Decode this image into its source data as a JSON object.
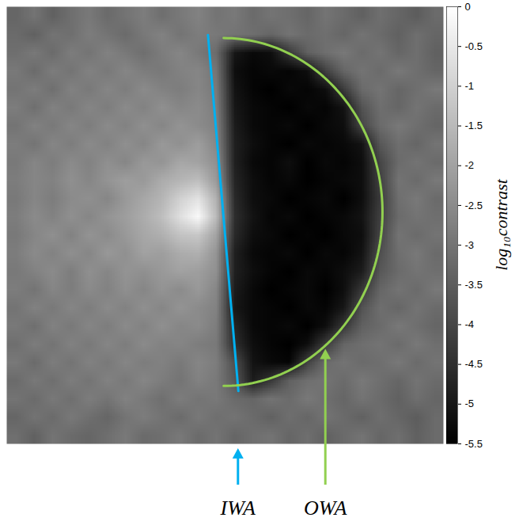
{
  "chart_data": {
    "type": "heatmap",
    "tick_labels": false,
    "cells": [
      [
        -3.3,
        -3.0,
        -3.4,
        -3.1,
        -2.9,
        -3.2,
        -3.0,
        -2.8,
        -3.1,
        -2.9,
        -2.7,
        -3.0,
        -2.9,
        -3.2,
        -3.0,
        -3.1,
        -3.3,
        -3.0,
        -3.2,
        -3.4,
        -3.1,
        -3.3,
        -3.5,
        -3.2
      ],
      [
        -3.2,
        -3.4,
        -3.0,
        -3.1,
        -2.8,
        -3.0,
        -3.2,
        -2.9,
        -2.7,
        -3.0,
        -2.8,
        -2.9,
        -3.0,
        -3.1,
        -3.3,
        -3.0,
        -3.2,
        -3.1,
        -3.3,
        -3.0,
        -3.2,
        -3.4,
        -3.1,
        -3.3
      ],
      [
        -3.1,
        -2.9,
        -3.2,
        -2.8,
        -3.0,
        -2.7,
        -2.9,
        -3.1,
        -2.8,
        -2.6,
        -2.9,
        -3.2,
        -5.0,
        -5.3,
        -5.2,
        -4.3,
        -3.4,
        -3.1,
        -2.9,
        -3.2,
        -3.0,
        -3.3,
        -3.1,
        -3.4
      ],
      [
        -2.9,
        -3.2,
        -2.8,
        -3.0,
        -2.7,
        -2.9,
        -2.6,
        -2.8,
        -2.9,
        -2.7,
        -2.6,
        -3.0,
        -5.2,
        -5.4,
        -5.3,
        -5.4,
        -5.2,
        -4.1,
        -3.3,
        -3.0,
        -3.2,
        -2.9,
        -3.1,
        -3.3
      ],
      [
        -3.0,
        -2.8,
        -3.1,
        -2.7,
        -2.9,
        -2.6,
        -2.8,
        -2.5,
        -2.7,
        -2.8,
        -2.6,
        -2.9,
        -5.1,
        -5.4,
        -5.5,
        -5.3,
        -5.4,
        -5.2,
        -4.2,
        -3.2,
        -3.0,
        -3.3,
        -3.1,
        -2.9
      ],
      [
        -2.8,
        -3.1,
        -2.7,
        -2.9,
        -2.6,
        -2.8,
        -2.5,
        -2.7,
        -2.4,
        -2.6,
        -2.5,
        -2.8,
        -5.0,
        -5.3,
        -5.4,
        -5.5,
        -5.3,
        -5.4,
        -5.1,
        -3.7,
        -3.1,
        -3.3,
        -3.0,
        -3.2
      ],
      [
        -3.0,
        -2.7,
        -2.9,
        -2.6,
        -2.8,
        -2.5,
        -2.7,
        -2.4,
        -2.6,
        -2.3,
        -2.5,
        -2.7,
        -4.9,
        -5.3,
        -5.4,
        -5.3,
        -5.5,
        -5.3,
        -5.2,
        -4.0,
        -3.2,
        -2.9,
        -3.1,
        -3.3
      ],
      [
        -2.8,
        -3.0,
        -2.6,
        -2.8,
        -2.5,
        -2.7,
        -2.4,
        -2.6,
        -2.2,
        -2.4,
        -2.1,
        -2.6,
        -4.8,
        -5.2,
        -5.4,
        -5.5,
        -5.3,
        -5.4,
        -5.3,
        -5.1,
        -3.6,
        -3.1,
        -3.3,
        -3.0
      ],
      [
        -2.9,
        -2.6,
        -2.8,
        -2.5,
        -2.7,
        -2.4,
        -2.6,
        -2.2,
        -2.3,
        -1.9,
        -2.0,
        -2.4,
        -4.8,
        -5.3,
        -5.4,
        -5.2,
        -5.5,
        -5.3,
        -5.4,
        -5.2,
        -4.0,
        -3.2,
        -3.0,
        -3.2
      ],
      [
        -2.8,
        -2.6,
        -2.7,
        -2.4,
        -2.6,
        -2.3,
        -2.1,
        -2.2,
        -1.8,
        -1.6,
        -1.4,
        -2.2,
        -4.7,
        -5.2,
        -5.4,
        -5.3,
        -5.5,
        -5.4,
        -5.3,
        -5.2,
        -4.1,
        -3.0,
        -3.2,
        -2.9
      ],
      [
        -2.9,
        -2.6,
        -2.8,
        -2.5,
        -2.4,
        -2.6,
        -2.2,
        -1.9,
        -1.6,
        -1.0,
        -0.6,
        -1.7,
        -4.6,
        -5.2,
        -5.3,
        -5.5,
        -5.4,
        -5.3,
        -5.5,
        -5.2,
        -4.2,
        -3.1,
        -2.9,
        -3.2
      ],
      [
        -2.8,
        -2.5,
        -2.7,
        -2.4,
        -2.6,
        -2.3,
        -2.1,
        -1.8,
        -1.4,
        -0.7,
        -0.1,
        -1.5,
        -4.5,
        -5.1,
        -5.4,
        -5.3,
        -5.5,
        -5.4,
        -5.3,
        -5.1,
        -4.1,
        -3.2,
        -3.0,
        -3.1
      ],
      [
        -2.9,
        -2.6,
        -2.4,
        -2.7,
        -2.3,
        -2.5,
        -2.2,
        -1.9,
        -1.7,
        -1.3,
        -1.2,
        -2.0,
        -4.6,
        -5.2,
        -5.3,
        -5.5,
        -5.4,
        -5.5,
        -5.3,
        -5.2,
        -4.0,
        -3.0,
        -3.2,
        -3.0
      ],
      [
        -2.8,
        -2.5,
        -2.7,
        -2.4,
        -2.6,
        -2.2,
        -2.4,
        -2.0,
        -2.1,
        -1.8,
        -1.7,
        -2.3,
        -4.8,
        -5.3,
        -5.4,
        -5.3,
        -5.5,
        -5.3,
        -5.4,
        -5.1,
        -3.8,
        -3.1,
        -2.9,
        -3.2
      ],
      [
        -2.9,
        -2.7,
        -2.5,
        -2.8,
        -2.4,
        -2.6,
        -2.3,
        -2.4,
        -2.2,
        -2.0,
        -2.1,
        -2.4,
        -4.8,
        -5.2,
        -5.4,
        -5.5,
        -5.3,
        -5.4,
        -5.2,
        -4.9,
        -3.6,
        -3.2,
        -3.0,
        -3.1
      ],
      [
        -2.8,
        -3.0,
        -2.6,
        -2.8,
        -2.5,
        -2.7,
        -2.4,
        -2.6,
        -2.3,
        -2.5,
        -2.2,
        -2.6,
        -4.9,
        -5.3,
        -5.5,
        -5.4,
        -5.3,
        -5.5,
        -5.2,
        -4.3,
        -3.3,
        -3.0,
        -3.2,
        -2.9
      ],
      [
        -3.0,
        -2.7,
        -2.9,
        -2.6,
        -2.8,
        -2.5,
        -2.7,
        -2.4,
        -2.6,
        -2.3,
        -2.5,
        -2.7,
        -5.0,
        -5.3,
        -5.4,
        -5.5,
        -5.3,
        -5.4,
        -5.0,
        -3.7,
        -3.1,
        -3.3,
        -3.0,
        -3.2
      ],
      [
        -2.9,
        -3.1,
        -2.7,
        -2.9,
        -2.6,
        -2.8,
        -2.5,
        -2.7,
        -2.4,
        -2.6,
        -2.5,
        -2.8,
        -4.7,
        -5.3,
        -5.4,
        -5.3,
        -5.5,
        -5.2,
        -4.3,
        -3.4,
        -3.2,
        -2.9,
        -3.1,
        -3.3
      ],
      [
        -3.1,
        -2.8,
        -3.0,
        -2.7,
        -2.9,
        -2.6,
        -2.8,
        -2.5,
        -2.7,
        -2.6,
        -2.8,
        -2.9,
        -4.5,
        -5.2,
        -5.4,
        -5.5,
        -5.2,
        -4.2,
        -3.3,
        -3.1,
        -3.0,
        -3.2,
        -2.9,
        -3.1
      ],
      [
        -2.9,
        -3.2,
        -2.8,
        -3.0,
        -2.7,
        -2.9,
        -2.6,
        -2.8,
        -2.7,
        -2.9,
        -2.6,
        -2.8,
        -3.8,
        -5.1,
        -5.3,
        -5.4,
        -4.1,
        -3.2,
        -3.0,
        -3.2,
        -3.1,
        -2.9,
        -3.2,
        -3.0
      ],
      [
        -3.2,
        -2.9,
        -3.1,
        -2.8,
        -3.0,
        -2.7,
        -2.9,
        -2.6,
        -2.8,
        -3.0,
        -2.7,
        -2.9,
        -3.6,
        -4.9,
        -4.3,
        -3.4,
        -3.1,
        -3.0,
        -3.2,
        -2.9,
        -3.1,
        -3.3,
        -3.0,
        -3.2
      ],
      [
        -3.0,
        -3.2,
        -2.9,
        -3.1,
        -2.8,
        -3.0,
        -2.7,
        -2.9,
        -3.1,
        -2.8,
        -3.0,
        -2.9,
        -3.2,
        -3.3,
        -3.0,
        -3.2,
        -2.9,
        -3.1,
        -3.3,
        -3.0,
        -3.2,
        -3.4,
        -3.1,
        -3.3
      ],
      [
        -3.3,
        -3.0,
        -3.2,
        -2.9,
        -3.1,
        -3.3,
        -3.0,
        -2.8,
        -3.0,
        -3.2,
        -2.9,
        -3.1,
        -3.0,
        -3.2,
        -3.4,
        -3.1,
        -3.3,
        -3.0,
        -3.2,
        -3.4,
        -3.1,
        -3.3,
        -3.5,
        -3.2
      ],
      [
        -3.1,
        -3.4,
        -3.0,
        -3.2,
        -3.3,
        -3.1,
        -2.9,
        -3.2,
        -3.1,
        -2.9,
        -3.2,
        -3.0,
        -3.3,
        -3.1,
        -3.0,
        -3.3,
        -3.1,
        -3.4,
        -3.2,
        -3.0,
        -3.3,
        -3.1,
        -3.4,
        -3.2
      ]
    ],
    "colorbar": {
      "label": "log₁₀contrast",
      "range": [
        -5.5,
        0
      ],
      "ticks": [
        0,
        -0.5,
        -1,
        -1.5,
        -2,
        -2.5,
        -3,
        -3.5,
        -4,
        -4.5,
        -5,
        -5.5
      ]
    },
    "annotations": [
      {
        "label": "IWA",
        "color": "#00b0f0",
        "line": [
          [
            11.06,
            1.55
          ],
          [
            12.73,
            21.1
          ]
        ]
      },
      {
        "label": "OWA",
        "color": "#92d050",
        "arc": {
          "center": [
            11.92,
            11.27
          ],
          "radii": [
            8.73,
            9.55
          ]
        }
      }
    ]
  }
}
